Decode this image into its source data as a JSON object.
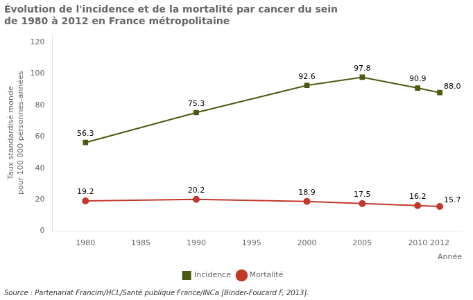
{
  "chart_data": {
    "type": "line",
    "title": "Évolution de l'incidence et de la mortalité par cancer du sein\nde 1980 à 2012 en France métropolitaine",
    "x_label": "Année",
    "y_label": "Taux standardisé monde\npour 100 000 personnes-années",
    "annotations": [
      "Source : Partenariat Francim/HCL/Santé publique France/INCa [Binder-Foucard F, 2013]."
    ],
    "x": [
      1980,
      1990,
      2000,
      2005,
      2010,
      2012
    ],
    "series": [
      {
        "name": "Incidence",
        "color": "#4a5a10",
        "marker": "square",
        "values": [
          56.3,
          75.3,
          92.6,
          97.8,
          90.9,
          88.0
        ],
        "value_labels": [
          "56.3",
          "75.3",
          "92.6",
          "97.8",
          "90.9",
          "88.0"
        ]
      },
      {
        "name": "Mortalité",
        "color": "#c0392b",
        "marker": "circle",
        "values": [
          19.2,
          20.2,
          18.9,
          17.5,
          16.2,
          15.7
        ],
        "value_labels": [
          "19.2",
          "20.2",
          "18.9",
          "17.5",
          "16.2",
          "15.7"
        ]
      }
    ],
    "xlim": [
      1977,
      2014
    ],
    "xticks": [
      1980,
      1985,
      1990,
      1995,
      2000,
      2005,
      2010,
      2012
    ],
    "ylim": [
      0,
      125
    ],
    "yticks": [
      0,
      20,
      40,
      60,
      80,
      100,
      120
    ],
    "grid": false,
    "legend": "bottom",
    "data_labels": true
  }
}
